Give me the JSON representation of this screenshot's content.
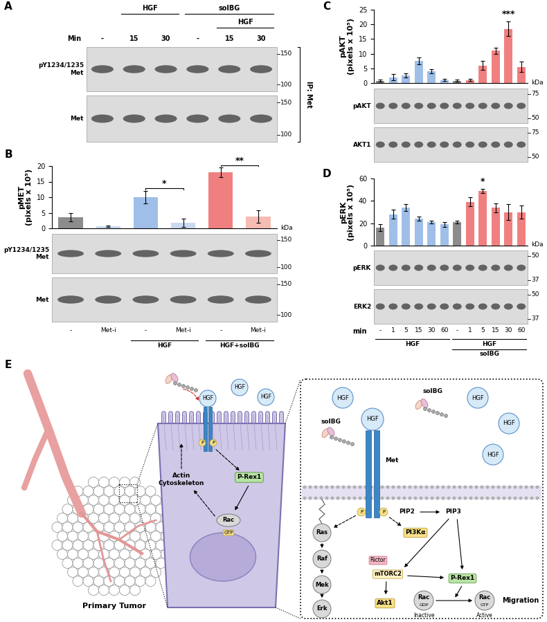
{
  "panels": {
    "A": {
      "letter": "A",
      "treatments": [
        {
          "label": "HGF",
          "lanes": [
            1,
            2
          ]
        },
        {
          "label": "solBG",
          "lanes": [
            3,
            5
          ]
        },
        {
          "label": "HGF",
          "lanes": [
            4,
            5
          ]
        }
      ],
      "time_label": "Min",
      "lanes": [
        "-",
        "15",
        "30",
        "-",
        "15",
        "30"
      ],
      "blots": [
        {
          "label": "pY1234/1235\nMet",
          "markers": [
            150,
            100
          ]
        },
        {
          "label": "Met",
          "markers": [
            150,
            100
          ]
        }
      ],
      "ip_label": "IP: Met"
    },
    "B": {
      "letter": "B",
      "unit": "kDa",
      "blots": [
        {
          "label": "pY1234/1235\nMet",
          "markers": [
            150,
            100
          ]
        },
        {
          "label": "Met",
          "markers": [
            150,
            100
          ]
        }
      ]
    },
    "C": {
      "letter": "C",
      "unit": "kDa",
      "blots": [
        {
          "label": "pAKT",
          "markers": [
            75,
            50
          ]
        },
        {
          "label": "AKT1",
          "markers": [
            75,
            50
          ]
        }
      ]
    },
    "D": {
      "letter": "D",
      "unit": "kDa",
      "blots": [
        {
          "label": "pERK",
          "markers": [
            50,
            37
          ]
        },
        {
          "label": "ERK2",
          "markers": [
            50,
            37
          ]
        }
      ]
    },
    "E": {
      "letter": "E",
      "tumor": {
        "label": "Primary Tumor"
      },
      "cell": {
        "hgf": [
          "HGF",
          "HGF",
          "HGF"
        ],
        "phospho": [
          "P",
          "P"
        ],
        "gef": "P-Rex1",
        "gtpase": "Rac",
        "gtp": "GTP",
        "actin": "Actin\nCytoskeleton"
      },
      "inset": {
        "hgf": [
          "HGF",
          "HGF",
          "HGF",
          "HGF",
          "HGF"
        ],
        "solbg": [
          "solBG",
          "solBG"
        ],
        "receptor": "Met",
        "phospho": [
          "P",
          "P"
        ],
        "mapk": [
          "Ras",
          "Raf",
          "Mek",
          "Erk"
        ],
        "lipids": [
          "PIP2",
          "PIP3"
        ],
        "pi3k": "PI3Kα",
        "mtorc2": [
          "Rictor",
          "mTORC2"
        ],
        "akt": "Akt1",
        "gef": "P-Rex1",
        "rac_inactive": [
          "Rac",
          "GDP",
          "Inactive"
        ],
        "rac_active": [
          "Rac",
          "GTP",
          "Active"
        ],
        "outcome": "Migration"
      }
    }
  },
  "chart_data": [
    {
      "type": "bar",
      "y_label": "pMET\n(pixels x 10⁵)",
      "categories": [
        "-",
        "Met-i",
        "-",
        "Met-i",
        "-",
        "Met-i"
      ],
      "values": [
        3.5,
        0.7,
        10,
        1.8,
        18,
        3.8
      ],
      "errors": [
        1.3,
        0.3,
        2.0,
        1.3,
        1.5,
        2.0
      ],
      "colors": [
        "#8c8c8c",
        "#c9daf0",
        "#9fbfe8",
        "#c9daf0",
        "#f08080",
        "#f6bcb4"
      ],
      "ylim": [
        0,
        20
      ],
      "yticks": [
        0,
        5,
        10,
        15,
        20
      ],
      "significance": [
        {
          "label": "*",
          "bars": [
            2,
            3
          ]
        },
        {
          "label": "**",
          "bars": [
            4,
            5
          ]
        }
      ],
      "groups": [
        {
          "labels": [
            "HGF"
          ],
          "span": [
            2,
            3
          ]
        },
        {
          "labels": [
            "HGF+solBG"
          ],
          "span": [
            4,
            5
          ]
        }
      ]
    },
    {
      "type": "bar",
      "y_label": "pAKT\n(pixels x 10⁵)",
      "tick_labels": "y",
      "categories": [
        "-",
        "1",
        "5",
        "15",
        "30",
        "60",
        "-",
        "1",
        "5",
        "15",
        "30",
        "60"
      ],
      "values": [
        0.8,
        2,
        2.5,
        7.5,
        4,
        1,
        0.8,
        1,
        6,
        11,
        18.5,
        5.5
      ],
      "errors": [
        0.4,
        1.0,
        0.7,
        1.2,
        0.8,
        0.4,
        0.3,
        0.3,
        1.5,
        1.0,
        2.5,
        1.8
      ],
      "colors": [
        "#8c8c8c",
        "#9fbfe8",
        "#9fbfe8",
        "#9fbfe8",
        "#9fbfe8",
        "#9fbfe8",
        "#8c8c8c",
        "#f08080",
        "#f08080",
        "#f08080",
        "#f08080",
        "#f08080"
      ],
      "ylim": [
        0,
        25
      ],
      "yticks": [
        0,
        5,
        10,
        15,
        20,
        25
      ],
      "significance": [
        {
          "label": "***",
          "bars": [
            10
          ]
        }
      ]
    },
    {
      "type": "bar",
      "y_label": "pERK\n(pixels x 10⁵)",
      "x_label": "min",
      "categories": [
        "-",
        "1",
        "5",
        "15",
        "30",
        "60",
        "-",
        "1",
        "5",
        "15",
        "30",
        "60"
      ],
      "values": [
        16,
        28,
        34,
        24,
        21,
        19,
        21,
        39,
        49,
        34,
        30,
        30
      ],
      "errors": [
        3,
        4,
        3,
        2,
        1,
        2,
        1.5,
        4,
        2,
        4,
        7,
        6
      ],
      "colors": [
        "#8c8c8c",
        "#9fbfe8",
        "#9fbfe8",
        "#9fbfe8",
        "#9fbfe8",
        "#9fbfe8",
        "#8c8c8c",
        "#f08080",
        "#f08080",
        "#f08080",
        "#f08080",
        "#f08080"
      ],
      "ylim": [
        0,
        60
      ],
      "yticks": [
        0,
        20,
        40,
        60
      ],
      "significance": [
        {
          "label": "*",
          "bars": [
            8
          ]
        }
      ],
      "groups": [
        {
          "labels": [
            "HGF"
          ],
          "span": [
            0,
            5
          ]
        },
        {
          "labels": [
            "HGF",
            "solBG"
          ],
          "span": [
            6,
            11
          ]
        }
      ]
    }
  ]
}
